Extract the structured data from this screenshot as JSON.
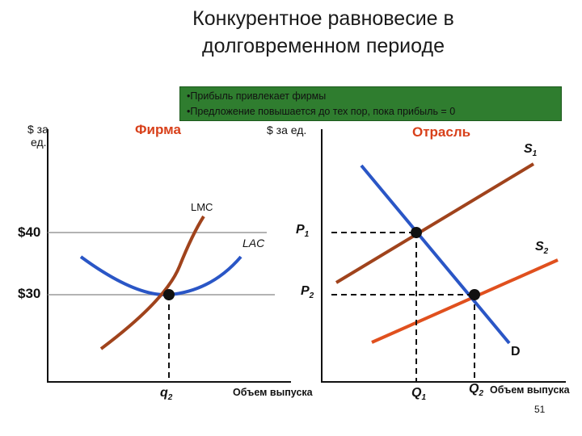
{
  "title": {
    "line1": "Конкурентное равновесие в",
    "line2": "долговременном периоде"
  },
  "banner": {
    "bullet1": "•Прибыль привлекает фирмы",
    "bullet2": "•Предложение повышается до тех пор, пока прибыль = 0",
    "background_color": "#2f7d2f"
  },
  "firm_panel": {
    "title": "Фирма",
    "y_unit_line1": "$ за",
    "y_unit_line2": "ед.",
    "price_high": "$40",
    "price_low": "$30",
    "lmc_label": "LMC",
    "lac_label": "LAC",
    "quantity_label": "q",
    "quantity_sub": "2",
    "x_label": "Объем выпуска",
    "lmc_color": "#a0431c",
    "lac_color": "#2a56c6"
  },
  "industry_panel": {
    "title": "Отрасль",
    "y_unit": "$ за ед.",
    "p1_label": "P",
    "p1_sub": "1",
    "p2_label": "P",
    "p2_sub": "2",
    "s1_label": "S",
    "s1_sub": "1",
    "s2_label": "S",
    "s2_sub": "2",
    "d_label": "D",
    "q1_label": "Q",
    "q1_sub": "1",
    "q2_label": "Q",
    "q2_sub": "2",
    "x_label": "Объем выпуска",
    "s1_color": "#a0431c",
    "s2_color": "#e0501e",
    "d_color": "#2a56c6"
  },
  "slide_number": "51"
}
